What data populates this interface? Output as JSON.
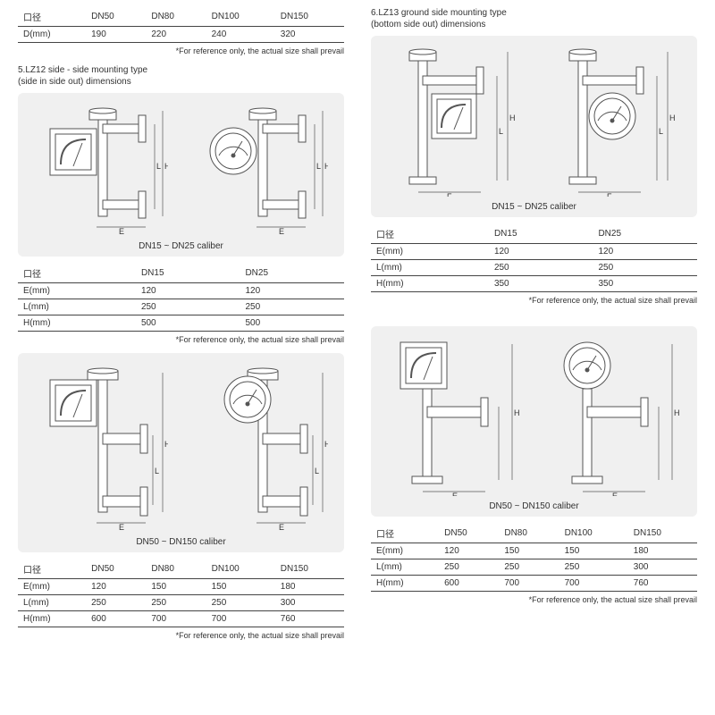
{
  "top_table": {
    "headers": [
      "口径",
      "DN50",
      "DN80",
      "DN100",
      "DN150"
    ],
    "rows": [
      [
        "D(mm)",
        "190",
        "220",
        "240",
        "320"
      ]
    ]
  },
  "footnote": "*For reference only, the actual size shall prevail",
  "section5": {
    "title_line1": "5.LZ12 side - side mounting type",
    "title_line2": "(side in side out) dimensions",
    "caliber_a": "DN15 ~ DN25 caliber",
    "caliber_b": "DN50 ~ DN150 caliber",
    "table_a": {
      "headers": [
        "口径",
        "DN15",
        "DN25"
      ],
      "rows": [
        [
          "E(mm)",
          "120",
          "120"
        ],
        [
          "L(mm)",
          "250",
          "250"
        ],
        [
          "H(mm)",
          "500",
          "500"
        ]
      ]
    },
    "table_b": {
      "headers": [
        "口径",
        "DN50",
        "DN80",
        "DN100",
        "DN150"
      ],
      "rows": [
        [
          "E(mm)",
          "120",
          "150",
          "150",
          "180"
        ],
        [
          "L(mm)",
          "250",
          "250",
          "250",
          "300"
        ],
        [
          "H(mm)",
          "600",
          "700",
          "700",
          "760"
        ]
      ]
    }
  },
  "section6": {
    "title_line1": "6.LZ13 ground side mounting type",
    "title_line2": "(bottom side out) dimensions",
    "caliber_a": "DN15 ~ DN25 caliber",
    "caliber_b": "DN50 ~ DN150 caliber",
    "table_a": {
      "headers": [
        "口径",
        "DN15",
        "DN25"
      ],
      "rows": [
        [
          "E(mm)",
          "120",
          "120"
        ],
        [
          "L(mm)",
          "250",
          "250"
        ],
        [
          "H(mm)",
          "350",
          "350"
        ]
      ]
    },
    "table_b": {
      "headers": [
        "口径",
        "DN50",
        "DN80",
        "DN100",
        "DN150"
      ],
      "rows": [
        [
          "E(mm)",
          "120",
          "150",
          "150",
          "180"
        ],
        [
          "L(mm)",
          "250",
          "250",
          "250",
          "300"
        ],
        [
          "H(mm)",
          "600",
          "700",
          "700",
          "760"
        ]
      ]
    }
  },
  "diagram": {
    "stroke": "#555",
    "fill": "#fff",
    "dim_labels": {
      "E": "E",
      "L": "L",
      "H": "H",
      "F": "F"
    }
  }
}
